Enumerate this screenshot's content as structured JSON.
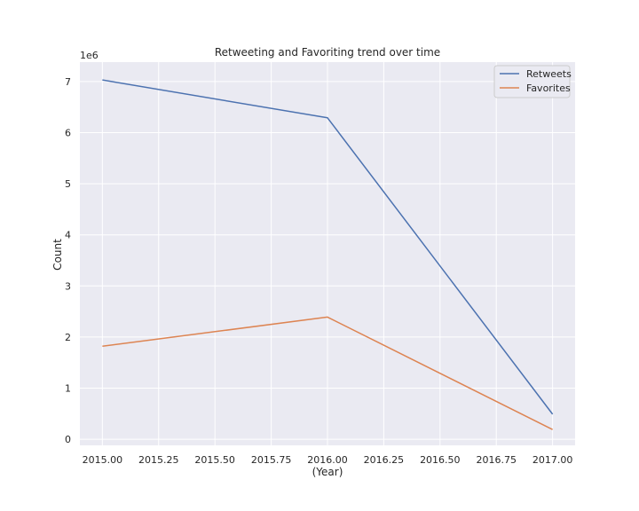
{
  "chart_data": {
    "type": "line",
    "title": "Retweeting and Favoriting trend over time",
    "xlabel": "(Year)",
    "ylabel": "Count",
    "y_offset_label": "1e6",
    "x": [
      2015.0,
      2016.0,
      2017.0
    ],
    "series": [
      {
        "name": "Retweets",
        "color": "#4c72b0",
        "values": [
          7030000,
          6290000,
          490000
        ]
      },
      {
        "name": "Favorites",
        "color": "#dd8452",
        "values": [
          1820000,
          2390000,
          190000
        ]
      }
    ],
    "xlim": [
      2014.9,
      2017.1
    ],
    "ylim": [
      -120000,
      7380000
    ],
    "x_ticks": [
      2015.0,
      2015.25,
      2015.5,
      2015.75,
      2016.0,
      2016.25,
      2016.5,
      2016.75,
      2017.0
    ],
    "x_tick_labels": [
      "2015.00",
      "2015.25",
      "2015.50",
      "2015.75",
      "2016.00",
      "2016.25",
      "2016.50",
      "2016.75",
      "2017.00"
    ],
    "y_ticks": [
      0,
      1000000,
      2000000,
      3000000,
      4000000,
      5000000,
      6000000,
      7000000
    ],
    "y_tick_labels": [
      "0",
      "1",
      "2",
      "3",
      "4",
      "5",
      "6",
      "7"
    ],
    "grid": true,
    "legend_position": "top-right",
    "background_color": "#eaeaf2",
    "grid_color": "#ffffff"
  }
}
